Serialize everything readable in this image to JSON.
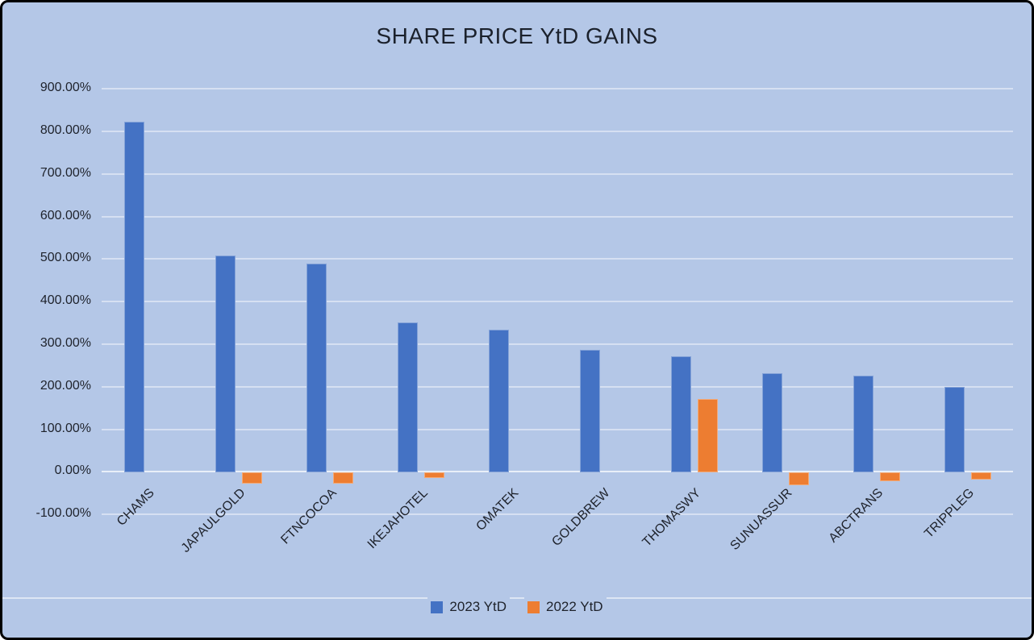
{
  "window": {
    "background": "#B4C7E7",
    "border_color": "#000000"
  },
  "chart_data": {
    "type": "bar",
    "title": "SHARE PRICE YtD GAINS",
    "categories": [
      "CHAMS",
      "JAPAULGOLD",
      "FTNCOCOA",
      "IKEJAHOTEL",
      "OMATEK",
      "GOLDBREW",
      "THOMASWY",
      "SUNUASSUR",
      "ABCTRANS",
      "TRIPPLEG"
    ],
    "series": [
      {
        "name": "2023 YtD",
        "color": "#4472C4",
        "values": [
          823,
          508,
          489,
          351,
          334,
          287,
          272,
          232,
          226,
          200
        ]
      },
      {
        "name": "2022 YtD",
        "color": "#ED7D31",
        "values": [
          0,
          -26,
          -26,
          -12,
          0,
          0,
          171,
          -30,
          -21,
          -16
        ]
      }
    ],
    "value_unit": "percent",
    "ylim": [
      -100,
      900
    ],
    "ytick_step": 100,
    "ytick_labels": [
      "900.00%",
      "800.00%",
      "700.00%",
      "600.00%",
      "500.00%",
      "400.00%",
      "300.00%",
      "200.00%",
      "100.00%",
      "0.00%",
      "-100.00%"
    ],
    "grid": true,
    "gridline_color": "#D6E0F2",
    "axis_line_color": "#E9EFF8",
    "legend_position": "bottom",
    "xlabel": "",
    "ylabel": ""
  }
}
